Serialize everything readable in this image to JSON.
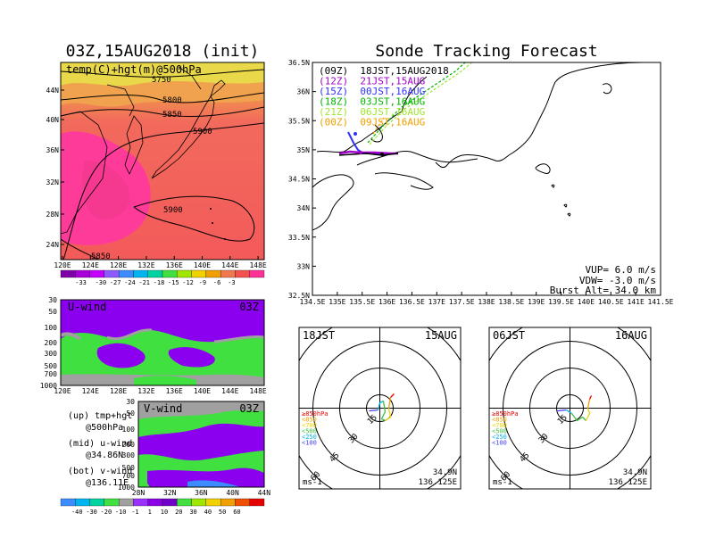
{
  "panels": {
    "map500": {
      "title": "03Z,15AUG2018 (init)",
      "subtitle": "temp(C)+hgt(m)@500hPa",
      "lat_labels": [
        "44N",
        "40N",
        "36N",
        "32N",
        "28N",
        "24N"
      ],
      "lon_labels": [
        "120E",
        "124E",
        "128E",
        "132E",
        "136E",
        "140E",
        "144E",
        "148E"
      ],
      "contour_labels": [
        "5750",
        "5800",
        "5850",
        "5900",
        "5900",
        "5850"
      ],
      "colorbar_labels": [
        "-33",
        "-30",
        "-27",
        "-24",
        "-21",
        "-18",
        "-15",
        "-12",
        "-9",
        "-6",
        "-3"
      ],
      "colorbar_colors": [
        "#7e00a8",
        "#a800d8",
        "#c400ff",
        "#8c5aff",
        "#3c8cff",
        "#00b4f0",
        "#00d2a0",
        "#40e040",
        "#a0e600",
        "#f0d200",
        "#f0a000",
        "#f07850",
        "#f55050",
        "#ff3296"
      ]
    },
    "uwind": {
      "label": "U-wind",
      "time": "03Z",
      "p_labels": [
        "30",
        "50",
        "100",
        "200",
        "300",
        "500",
        "700",
        "1000"
      ],
      "lon_labels": [
        "120E",
        "124E",
        "128E",
        "132E",
        "136E",
        "140E",
        "144E",
        "148E"
      ]
    },
    "vwind": {
      "label": "V-wind",
      "time": "03Z",
      "p_labels": [
        "30",
        "50",
        "100",
        "200",
        "300",
        "500",
        "700",
        "1000"
      ],
      "lat_labels": [
        "28N",
        "32N",
        "36N",
        "40N",
        "44N"
      ]
    },
    "notes": {
      "lines": [
        "(up) tmp+hgt",
        "@500hPa",
        "(mid) u-wind",
        "@34.86N",
        "(bot) v-wind",
        "@136.11E"
      ]
    },
    "wind_colorbar": {
      "labels": [
        "-40",
        "-30",
        "-20",
        "-10",
        "-1",
        "1",
        "10",
        "20",
        "30",
        "40",
        "50",
        "60"
      ],
      "colors": [
        "#3c8cff",
        "#00b4f0",
        "#00d2a0",
        "#40e040",
        "#a0a0a0",
        "#9b30ff",
        "#8a00e6",
        "#7000c8",
        "#40e040",
        "#a0e600",
        "#f0d200",
        "#f0a000",
        "#f05000",
        "#e60000"
      ]
    },
    "track": {
      "title": "Sonde Tracking Forecast",
      "lat_labels": [
        "36.5N",
        "36N",
        "35.5N",
        "35N",
        "34.5N",
        "34N",
        "33.5N",
        "33N",
        "32.5N"
      ],
      "lon_labels": [
        "134.5E",
        "135E",
        "135.5E",
        "136E",
        "136.5E",
        "137E",
        "137.5E",
        "138E",
        "138.5E",
        "139E",
        "139.5E",
        "140E",
        "140.5E",
        "141E",
        "141.5E"
      ],
      "legend": [
        {
          "text": "(09Z)  18JST,15AUG2018",
          "color": "#000000"
        },
        {
          "text": "(12Z)  21JST,15AUG",
          "color": "#a000c8"
        },
        {
          "text": "(15Z)  00JST,16AUG",
          "color": "#3030ff"
        },
        {
          "text": "(18Z)  03JST,16AUG",
          "color": "#00b400"
        },
        {
          "text": "(21Z)  06JST,16AUG",
          "color": "#a0e632"
        },
        {
          "text": "(00Z)  09JST,16AUG",
          "color": "#f0a000"
        }
      ],
      "info": [
        "VUP=  6.0 m/s",
        "VDW= -3.0 m/s",
        "Burst Alt= 34.0 km"
      ]
    },
    "hodo1": {
      "time": "18JST",
      "date": "15AUG",
      "ring_labels": [
        "15",
        "30",
        "45",
        "60"
      ],
      "unit": "ms-1",
      "lat": "34.9N",
      "lon": "136.125E",
      "levels": [
        {
          "text": "≥850hPa",
          "color": "#e60000"
        },
        {
          "text": "<850",
          "color": "#f0a000"
        },
        {
          "text": "<700",
          "color": "#f0d200"
        },
        {
          "text": "<500",
          "color": "#40c040"
        },
        {
          "text": "<250",
          "color": "#00b4f0"
        },
        {
          "text": "<100",
          "color": "#3c3cff"
        }
      ]
    },
    "hodo2": {
      "time": "06JST",
      "date": "16AUG",
      "ring_labels": [
        "15",
        "30",
        "45",
        "60"
      ],
      "unit": "ms-1",
      "lat": "34.9N",
      "lon": "136.125E",
      "levels": [
        {
          "text": "≥850hPa",
          "color": "#e60000"
        },
        {
          "text": "<850",
          "color": "#f0a000"
        },
        {
          "text": "<700",
          "color": "#f0d200"
        },
        {
          "text": "<500",
          "color": "#40c040"
        },
        {
          "text": "<250",
          "color": "#00b4f0"
        },
        {
          "text": "<100",
          "color": "#3c3cff"
        }
      ]
    }
  }
}
